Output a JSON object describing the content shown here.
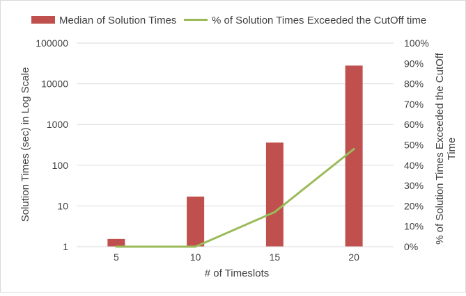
{
  "chart_data": {
    "type": "bar",
    "categories": [
      "5",
      "10",
      "15",
      "20"
    ],
    "series": [
      {
        "name": "Median of Solution Times",
        "type": "bar",
        "axis": "left",
        "values": [
          1.55,
          17,
          360,
          28000
        ]
      },
      {
        "name": "% of Solution Times Exceeded the CutOff time",
        "type": "line",
        "axis": "right",
        "values": [
          0,
          0,
          17,
          48
        ]
      }
    ],
    "xlabel": "# of Timeslots",
    "ylabel": "Solution Times (sec) in Log Scale",
    "ylabel_right": "% of Solution Times Exceeded the CutOff Time",
    "y_scale": "log",
    "ylim": [
      1,
      100000
    ],
    "y_ticks": [
      "1",
      "10",
      "100",
      "1000",
      "10000",
      "100000"
    ],
    "ylim_right": [
      0,
      100
    ],
    "y_ticks_right": [
      "0%",
      "10%",
      "20%",
      "30%",
      "40%",
      "50%",
      "60%",
      "70%",
      "80%",
      "90%",
      "100%"
    ],
    "grid": true,
    "legend_position": "top",
    "colors": {
      "bar": "#c0504d",
      "line": "#9bbb59",
      "grid": "#d9d9d9",
      "text": "#404040"
    }
  }
}
